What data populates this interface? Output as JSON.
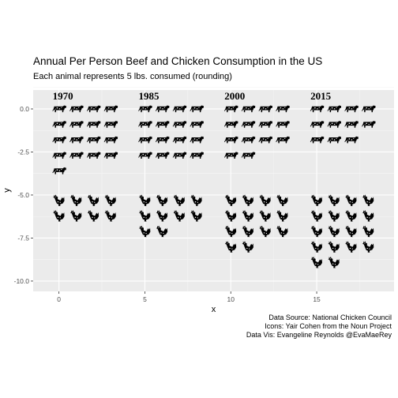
{
  "chart_data": {
    "type": "scatter",
    "title": "Annual Per Person Beef and Chicken Consumption in the US",
    "subtitle": "Each animal represents 5 lbs. consumed (rounding)",
    "xlabel": "x",
    "ylabel": "y",
    "xlim": [
      -1.5,
      19.5
    ],
    "ylim": [
      -10.6,
      1.1
    ],
    "xticks": [
      0,
      5,
      10,
      15
    ],
    "yticks": [
      0.0,
      -2.5,
      -5.0,
      -7.5,
      -10.0
    ],
    "xtick_labels": [
      "0",
      "5",
      "10",
      "15"
    ],
    "ytick_labels": [
      "0.0",
      "-2.5",
      "-5.0",
      "-7.5",
      "-10.0"
    ],
    "grid": true,
    "year_labels": [
      {
        "label": "1970",
        "x": 0
      },
      {
        "label": "1985",
        "x": 5
      },
      {
        "label": "2000",
        "x": 10
      },
      {
        "label": "2015",
        "x": 15
      }
    ],
    "series": [
      {
        "name": "Beef",
        "icon": "cow-icon",
        "groups": [
          {
            "year": "1970",
            "count": 17
          },
          {
            "year": "1985",
            "count": 16
          },
          {
            "year": "2000",
            "count": 14
          },
          {
            "year": "2015",
            "count": 11
          }
        ]
      },
      {
        "name": "Chicken",
        "icon": "chicken-icon",
        "groups": [
          {
            "year": "1970",
            "count": 8
          },
          {
            "year": "1985",
            "count": 10
          },
          {
            "year": "2000",
            "count": 14
          },
          {
            "year": "2015",
            "count": 18
          }
        ]
      }
    ],
    "caption": [
      "Data Source: National Chicken Council",
      "Icons:  Yair Cohen from the Noun Project",
      "Data Vis: Evangeline Reynolds @EvaMaeRey"
    ],
    "colors": {
      "panel": "#EBEBEB",
      "grid_major": "#FFFFFF",
      "grid_minor": "#F5F5F5",
      "icon": "#000000"
    }
  }
}
